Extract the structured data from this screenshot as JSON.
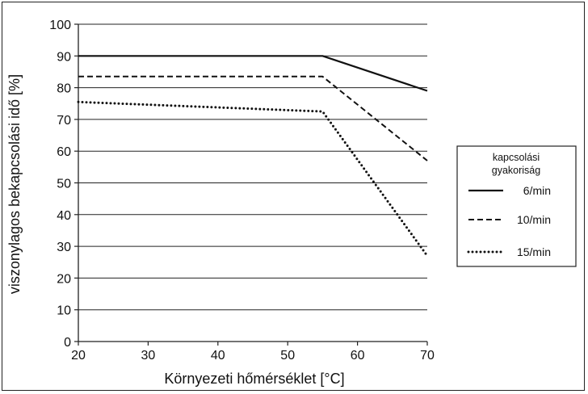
{
  "chart_data": {
    "type": "line",
    "xlabel": "Környezeti hőmérséklet [°C]",
    "ylabel": "viszonylagos bekapcsolási idő [%]",
    "xlim": [
      20,
      70
    ],
    "ylim": [
      0,
      100
    ],
    "x_ticks": [
      "20",
      "30",
      "40",
      "50",
      "60",
      "70"
    ],
    "y_ticks": [
      "0",
      "10",
      "20",
      "30",
      "40",
      "50",
      "60",
      "70",
      "80",
      "90",
      "100"
    ],
    "grid": "horizontal",
    "legend": {
      "title_line1": "kapcsolási",
      "title_line2": "gyakoriság",
      "placement": "right"
    },
    "series": [
      {
        "name": "6/min",
        "style": "solid",
        "points": [
          [
            20,
            90
          ],
          [
            55,
            90
          ],
          [
            70,
            79
          ]
        ]
      },
      {
        "name": "10/min",
        "style": "dashed",
        "points": [
          [
            20,
            83.5
          ],
          [
            55,
            83.5
          ],
          [
            70,
            57
          ]
        ]
      },
      {
        "name": "15/min",
        "style": "dotted",
        "points": [
          [
            20,
            75.5
          ],
          [
            55,
            72.5
          ],
          [
            70,
            27
          ]
        ]
      }
    ]
  }
}
